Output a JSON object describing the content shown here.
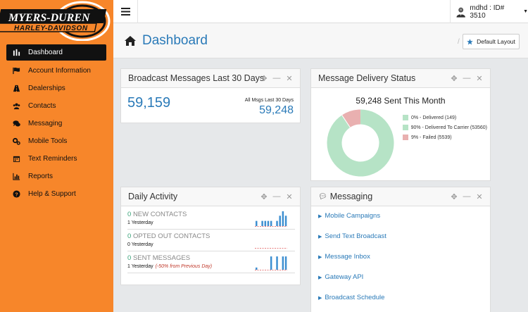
{
  "brand": {
    "line1": "MYERS-DUREN",
    "line2": "HARLEY-DAVIDSON",
    "colors": {
      "orange": "#f7862a",
      "dark": "#111111"
    }
  },
  "sidebar": {
    "items": [
      {
        "label": "Dashboard",
        "icon": "dashboard-icon",
        "active": true
      },
      {
        "label": "Account Information",
        "icon": "flag-icon"
      },
      {
        "label": "Dealerships",
        "icon": "road-icon"
      },
      {
        "label": "Contacts",
        "icon": "users-icon"
      },
      {
        "label": "Messaging",
        "icon": "comments-icon"
      },
      {
        "label": "Mobile Tools",
        "icon": "gears-icon"
      },
      {
        "label": "Text Reminders",
        "icon": "calendar-icon"
      },
      {
        "label": "Reports",
        "icon": "bar-chart-icon"
      },
      {
        "label": "Help & Support",
        "icon": "question-icon"
      }
    ]
  },
  "topbar": {
    "user": "mdhd : ID# 3510"
  },
  "header": {
    "title": "Dashboard",
    "separator": "/",
    "default_layout": "Default Layout"
  },
  "broadcast": {
    "title": "Broadcast Messages Last 30 Days",
    "value": "59,159",
    "all_label": "All Msgs Last 30 Days",
    "all_value": "59,248"
  },
  "delivery": {
    "title": "Message Delivery Status",
    "sent": "59,248 Sent This Month",
    "legend": [
      {
        "label": "0% - Delivered (149)",
        "color": "#b6e3c6",
        "fraction": 0.0025
      },
      {
        "label": "90% - Delivered To Carrier (53560)",
        "color": "#b6e3c6",
        "fraction": 0.904
      },
      {
        "label": "9% - Failed (5539)",
        "color": "#e9b0b0",
        "fraction": 0.0935
      }
    ]
  },
  "activity": {
    "title": "Daily Activity",
    "rows": [
      {
        "count": "0",
        "label": "NEW CONTACTS",
        "yesterday": "1 Yesterday",
        "note": "",
        "bars": [
          0.35,
          0,
          0.35,
          0.35,
          0.35,
          0.35,
          0,
          0.35,
          0.7,
          1,
          0.7
        ]
      },
      {
        "count": "0",
        "label": "OPTED OUT CONTACTS",
        "yesterday": "0 Yesterday",
        "note": "",
        "bars": []
      },
      {
        "count": "0",
        "label": "SENT MESSAGES",
        "yesterday": "1 Yesterday",
        "note": "(-50% from Previous Day)",
        "bars": [
          0.15,
          0,
          0,
          0,
          0,
          0.9,
          0,
          0.9,
          0,
          0.9,
          0.9
        ]
      }
    ]
  },
  "messaging": {
    "title": "Messaging",
    "links": [
      "Mobile Campaigns",
      "Send Text Broadcast",
      "Message Inbox",
      "Gateway API",
      "Broadcast Schedule"
    ]
  }
}
